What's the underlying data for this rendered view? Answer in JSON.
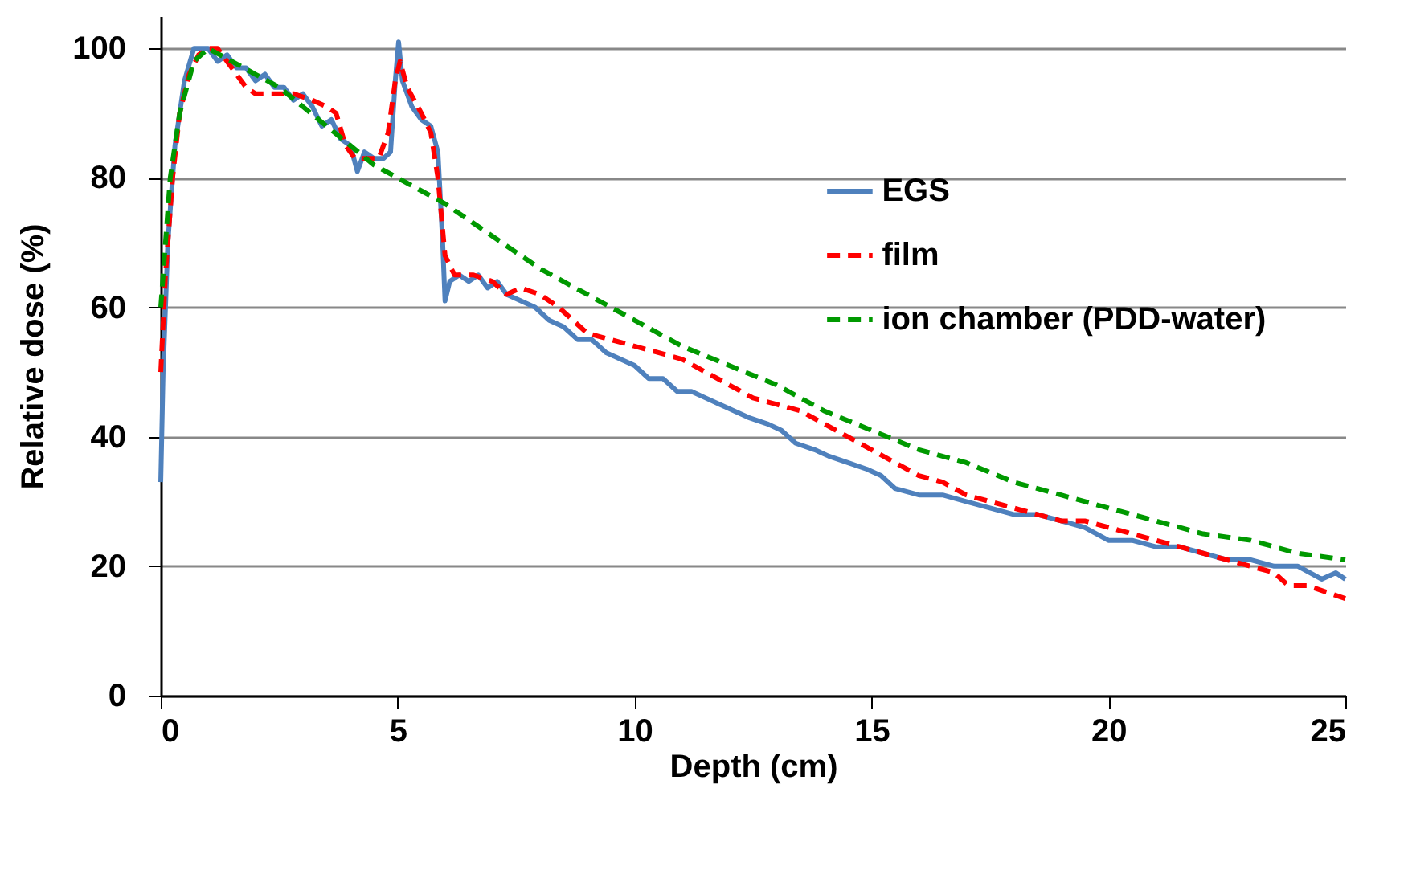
{
  "chart_data": {
    "type": "line",
    "xlabel": "Depth (cm)",
    "ylabel": "Relative dose (%)",
    "xlim": [
      0,
      25
    ],
    "xticks": [
      0,
      5,
      10,
      15,
      20,
      25
    ],
    "ylim": [
      0,
      105
    ],
    "yticks": [
      0,
      20,
      40,
      60,
      80,
      100
    ],
    "grid": "y",
    "legend": "right",
    "series": [
      {
        "name": "EGS",
        "color": "#4f81bd",
        "line_style": "solid",
        "x": [
          0,
          0.05,
          0.15,
          0.3,
          0.5,
          0.7,
          0.9,
          1.0,
          1.2,
          1.4,
          1.6,
          1.8,
          2.0,
          2.2,
          2.4,
          2.6,
          2.8,
          3.0,
          3.2,
          3.4,
          3.6,
          3.8,
          4.0,
          4.15,
          4.3,
          4.5,
          4.7,
          4.85,
          4.95,
          5.02,
          5.1,
          5.3,
          5.5,
          5.7,
          5.85,
          5.95,
          6.0,
          6.1,
          6.3,
          6.5,
          6.7,
          6.9,
          7.1,
          7.3,
          7.6,
          7.9,
          8.2,
          8.5,
          8.8,
          9.1,
          9.4,
          9.7,
          10.0,
          10.3,
          10.6,
          10.9,
          11.2,
          11.5,
          11.8,
          12.1,
          12.4,
          12.8,
          13.1,
          13.4,
          13.8,
          14.1,
          14.5,
          14.9,
          15.2,
          15.5,
          16.0,
          16.5,
          17.0,
          17.5,
          18.0,
          18.5,
          19.0,
          19.5,
          20.0,
          20.5,
          21.0,
          21.5,
          22.0,
          22.5,
          23.0,
          23.5,
          24.0,
          24.5,
          24.8,
          25
        ],
        "values": [
          33,
          50,
          70,
          85,
          95,
          100,
          100,
          100,
          98,
          99,
          97,
          97,
          95,
          96,
          94,
          94,
          92,
          93,
          91,
          88,
          89,
          86,
          85,
          81,
          84,
          83,
          83,
          84,
          95,
          101,
          95,
          91,
          89,
          88,
          84,
          70,
          61,
          64,
          65,
          64,
          65,
          63,
          64,
          62,
          61,
          60,
          58,
          57,
          55,
          55,
          53,
          52,
          51,
          49,
          49,
          47,
          47,
          46,
          45,
          44,
          43,
          42,
          41,
          39,
          38,
          37,
          36,
          35,
          34,
          32,
          31,
          31,
          30,
          29,
          28,
          28,
          27,
          26,
          24,
          24,
          23,
          23,
          22,
          21,
          21,
          20,
          20,
          18,
          19,
          18
        ]
      },
      {
        "name": "film",
        "color": "#ff0000",
        "line_style": "dashed",
        "x": [
          0,
          0.1,
          0.25,
          0.4,
          0.6,
          0.8,
          1.0,
          1.2,
          1.4,
          1.6,
          1.8,
          2.0,
          2.4,
          2.8,
          3.2,
          3.5,
          3.7,
          3.9,
          4.1,
          4.4,
          4.6,
          4.8,
          4.95,
          5.05,
          5.2,
          5.5,
          5.7,
          5.85,
          6.0,
          6.2,
          6.6,
          7.0,
          7.3,
          7.6,
          8.0,
          8.4,
          8.7,
          9.0,
          9.5,
          10.0,
          10.5,
          11.0,
          11.5,
          12.0,
          12.5,
          13.0,
          13.5,
          14.0,
          14.5,
          15.0,
          15.5,
          16.0,
          16.5,
          17.0,
          17.5,
          18.0,
          18.5,
          19.0,
          19.5,
          20.0,
          20.5,
          21.0,
          21.5,
          22.0,
          22.5,
          23.0,
          23.5,
          23.8,
          24.2,
          24.6,
          25
        ],
        "values": [
          50,
          65,
          80,
          90,
          96,
          99,
          100,
          100,
          98,
          96,
          94,
          93,
          93,
          93,
          92,
          91,
          90,
          85,
          83,
          83,
          83,
          87,
          95,
          98,
          94,
          90,
          87,
          80,
          68,
          65,
          65,
          64,
          62,
          63,
          62,
          60,
          58,
          56,
          55,
          54,
          53,
          52,
          50,
          48,
          46,
          45,
          44,
          42,
          40,
          38,
          36,
          34,
          33,
          31,
          30,
          29,
          28,
          27,
          27,
          26,
          25,
          24,
          23,
          22,
          21,
          20,
          19,
          17,
          17,
          16,
          15
        ]
      },
      {
        "name": "ion chamber (PDD-water)",
        "color": "#009900",
        "line_style": "dashed",
        "x": [
          0,
          0.2,
          0.4,
          0.7,
          1.0,
          1.5,
          2.0,
          2.5,
          3.0,
          3.5,
          4.0,
          4.5,
          5,
          6,
          7,
          8,
          9,
          10,
          11,
          12,
          13,
          14,
          15,
          16,
          17,
          18,
          19,
          20,
          21,
          22,
          23,
          24,
          25
        ],
        "values": [
          60,
          80,
          90,
          98,
          100,
          98,
          96,
          94,
          91,
          88,
          85,
          82,
          80,
          76,
          71,
          66,
          62,
          58,
          54,
          51,
          48,
          44,
          41,
          38,
          36,
          33,
          31,
          29,
          27,
          25,
          24,
          22,
          21
        ]
      }
    ]
  }
}
